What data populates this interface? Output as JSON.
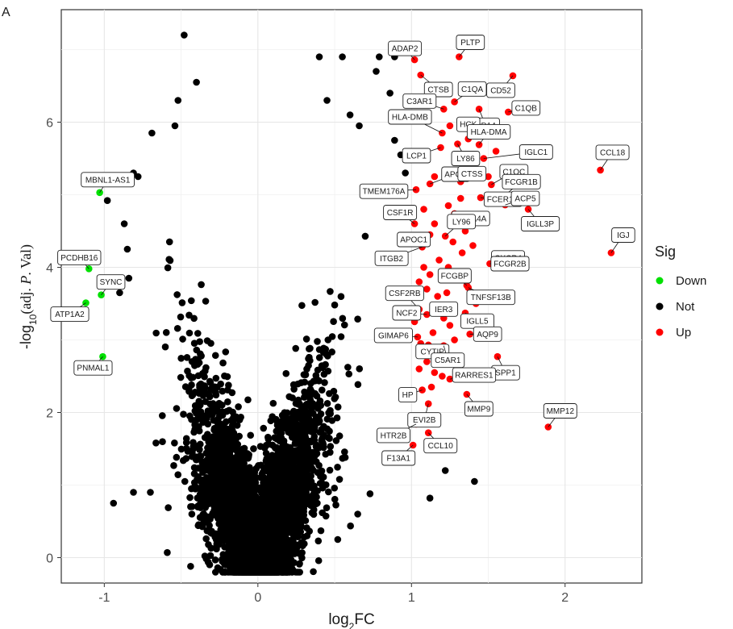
{
  "panel_letter": "A",
  "chart_data": {
    "type": "scatter",
    "title": "",
    "xlabel": "log₂FC",
    "ylabel": "-log₁₀(adj. P. Val)",
    "xlim": [
      -1.28,
      2.5
    ],
    "ylim": [
      -0.35,
      7.55
    ],
    "xticks": [
      -1,
      0,
      1,
      2
    ],
    "yticks": [
      0,
      2,
      4,
      6
    ],
    "xtick_labels": [
      "-1",
      "0",
      "1",
      "2"
    ],
    "ytick_labels": [
      "0",
      "2",
      "4",
      "6"
    ],
    "grid": true,
    "legend": {
      "title": "Sig",
      "position": "right",
      "entries": [
        {
          "name": "Down",
          "color": "#00e000"
        },
        {
          "name": "Not",
          "color": "#000000"
        },
        {
          "name": "Up",
          "color": "#ff0000"
        }
      ]
    },
    "series": [
      {
        "name": "Down",
        "color": "#00e000",
        "points": [
          {
            "x": -1.03,
            "y": 5.03,
            "label": "MBNL1-AS1"
          },
          {
            "x": -1.1,
            "y": 3.98,
            "label": "PCDHB16"
          },
          {
            "x": -1.02,
            "y": 3.62,
            "label": "SYNC"
          },
          {
            "x": -1.12,
            "y": 3.51,
            "label": "ATP1A2"
          },
          {
            "x": -1.01,
            "y": 2.77,
            "label": "PNMAL1"
          }
        ]
      },
      {
        "name": "Up",
        "color": "#ff0000",
        "points": [
          {
            "x": 1.02,
            "y": 6.86,
            "label": "ADAP2"
          },
          {
            "x": 1.31,
            "y": 6.9,
            "label": "PLTP"
          },
          {
            "x": 1.06,
            "y": 6.65,
            "label": "CTSB"
          },
          {
            "x": 1.66,
            "y": 6.64,
            "label": "CD52"
          },
          {
            "x": 1.28,
            "y": 6.28,
            "label": "C1QA"
          },
          {
            "x": 1.21,
            "y": 6.18,
            "label": "C3AR1"
          },
          {
            "x": 1.63,
            "y": 6.14,
            "label": "C1QB"
          },
          {
            "x": 1.44,
            "y": 6.18,
            "label": "CD14"
          },
          {
            "x": 1.37,
            "y": 5.77,
            "label": "HCK"
          },
          {
            "x": 1.2,
            "y": 5.85,
            "label": "HLA-DMB"
          },
          {
            "x": 1.44,
            "y": 5.69,
            "label": "HLA-DMA"
          },
          {
            "x": 1.19,
            "y": 5.65,
            "label": "LCP1"
          },
          {
            "x": 1.3,
            "y": 5.7,
            "label": "LY86"
          },
          {
            "x": 1.47,
            "y": 5.5,
            "label": "IGLC1"
          },
          {
            "x": 2.23,
            "y": 5.34,
            "label": "CCL18"
          },
          {
            "x": 1.12,
            "y": 5.15,
            "label": "APOE"
          },
          {
            "x": 1.32,
            "y": 5.18,
            "label": "CTSS"
          },
          {
            "x": 1.52,
            "y": 5.14,
            "label": "C1QC"
          },
          {
            "x": 1.6,
            "y": 4.98,
            "label": "FCGR1B"
          },
          {
            "x": 1.03,
            "y": 5.07,
            "label": "TMEM176A"
          },
          {
            "x": 1.45,
            "y": 4.96,
            "label": "FCER1G"
          },
          {
            "x": 1.61,
            "y": 4.86,
            "label": "ACP5"
          },
          {
            "x": 1.76,
            "y": 4.8,
            "label": "IGLL3P"
          },
          {
            "x": 1.28,
            "y": 4.74,
            "label": "MS4A4A"
          },
          {
            "x": 1.02,
            "y": 4.6,
            "label": "CSF1R"
          },
          {
            "x": 1.12,
            "y": 4.45,
            "label": "APOC1"
          },
          {
            "x": 1.22,
            "y": 4.43,
            "label": "LY96"
          },
          {
            "x": 1.07,
            "y": 4.28,
            "label": "ITGB2"
          },
          {
            "x": 2.3,
            "y": 4.2,
            "label": "IGJ"
          },
          {
            "x": 1.55,
            "y": 4.13,
            "label": "CXCR4"
          },
          {
            "x": 1.51,
            "y": 4.05,
            "label": "FCGR2B"
          },
          {
            "x": 1.36,
            "y": 3.75,
            "label": "FCGBP"
          },
          {
            "x": 1.37,
            "y": 3.72,
            "label": "TNFSF13B"
          },
          {
            "x": 1.05,
            "y": 3.42,
            "label": "CSF2RB"
          },
          {
            "x": 1.1,
            "y": 3.35,
            "label": "NCF2"
          },
          {
            "x": 1.22,
            "y": 3.48,
            "label": "IER3"
          },
          {
            "x": 1.35,
            "y": 3.37,
            "label": "IGLL5"
          },
          {
            "x": 1.04,
            "y": 3.04,
            "label": "GIMAP6"
          },
          {
            "x": 1.11,
            "y": 2.93,
            "label": "CYTIP"
          },
          {
            "x": 1.21,
            "y": 2.92,
            "label": "C5AR1"
          },
          {
            "x": 1.38,
            "y": 3.08,
            "label": "AQP9"
          },
          {
            "x": 1.56,
            "y": 2.77,
            "label": "SPP1"
          },
          {
            "x": 1.25,
            "y": 2.46,
            "label": "RARRES1"
          },
          {
            "x": 1.07,
            "y": 2.31,
            "label": "HP"
          },
          {
            "x": 1.36,
            "y": 2.25,
            "label": "MMP9"
          },
          {
            "x": 1.11,
            "y": 2.12,
            "label": "EVI2B"
          },
          {
            "x": 1.89,
            "y": 1.8,
            "label": "MMP12"
          },
          {
            "x": 1.03,
            "y": 1.84,
            "label": "HTR2B"
          },
          {
            "x": 1.11,
            "y": 1.72,
            "label": "CCL10"
          },
          {
            "x": 1.01,
            "y": 1.55,
            "label": "F13A1"
          },
          {
            "x": 1.05,
            "y": 2.6,
            "label": ""
          },
          {
            "x": 1.1,
            "y": 2.7,
            "label": ""
          },
          {
            "x": 1.15,
            "y": 2.55,
            "label": ""
          },
          {
            "x": 1.2,
            "y": 2.8,
            "label": ""
          },
          {
            "x": 1.25,
            "y": 3.2,
            "label": ""
          },
          {
            "x": 1.3,
            "y": 3.9,
            "label": ""
          },
          {
            "x": 1.12,
            "y": 3.9,
            "label": ""
          },
          {
            "x": 1.18,
            "y": 4.1,
            "label": ""
          },
          {
            "x": 1.24,
            "y": 4.0,
            "label": ""
          },
          {
            "x": 1.08,
            "y": 4.0,
            "label": ""
          },
          {
            "x": 1.15,
            "y": 4.6,
            "label": ""
          },
          {
            "x": 1.24,
            "y": 4.85,
            "label": ""
          },
          {
            "x": 1.35,
            "y": 4.5,
            "label": ""
          },
          {
            "x": 1.1,
            "y": 3.7,
            "label": ""
          },
          {
            "x": 1.17,
            "y": 3.6,
            "label": ""
          },
          {
            "x": 1.23,
            "y": 3.65,
            "label": ""
          },
          {
            "x": 1.28,
            "y": 3.0,
            "label": ""
          },
          {
            "x": 1.05,
            "y": 3.8,
            "label": ""
          },
          {
            "x": 1.14,
            "y": 3.1,
            "label": ""
          },
          {
            "x": 1.19,
            "y": 2.9,
            "label": ""
          },
          {
            "x": 1.4,
            "y": 4.3,
            "label": ""
          },
          {
            "x": 1.33,
            "y": 4.2,
            "label": ""
          },
          {
            "x": 1.27,
            "y": 4.35,
            "label": ""
          },
          {
            "x": 1.5,
            "y": 5.25,
            "label": ""
          },
          {
            "x": 1.55,
            "y": 5.6,
            "label": ""
          },
          {
            "x": 1.38,
            "y": 5.9,
            "label": ""
          },
          {
            "x": 1.25,
            "y": 5.95,
            "label": ""
          },
          {
            "x": 1.15,
            "y": 5.25,
            "label": ""
          },
          {
            "x": 1.08,
            "y": 4.8,
            "label": ""
          },
          {
            "x": 1.32,
            "y": 4.95,
            "label": ""
          },
          {
            "x": 1.21,
            "y": 3.3,
            "label": ""
          },
          {
            "x": 1.13,
            "y": 2.35,
            "label": ""
          },
          {
            "x": 1.09,
            "y": 1.95,
            "label": ""
          },
          {
            "x": 1.16,
            "y": 3.45,
            "label": ""
          },
          {
            "x": 1.42,
            "y": 3.5,
            "label": ""
          },
          {
            "x": 1.29,
            "y": 2.65,
            "label": ""
          },
          {
            "x": 1.06,
            "y": 2.95,
            "label": ""
          },
          {
            "x": 1.2,
            "y": 2.5,
            "label": ""
          },
          {
            "x": 1.34,
            "y": 3.85,
            "label": ""
          },
          {
            "x": 1.02,
            "y": 3.25,
            "label": ""
          }
        ]
      },
      {
        "name": "Not",
        "color": "#000000",
        "points": [
          {
            "x": -0.48,
            "y": 7.2
          },
          {
            "x": -0.4,
            "y": 6.55
          },
          {
            "x": -0.52,
            "y": 6.3
          },
          {
            "x": -0.54,
            "y": 5.95
          },
          {
            "x": -0.69,
            "y": 5.85
          },
          {
            "x": -0.78,
            "y": 5.25
          },
          {
            "x": -0.81,
            "y": 5.3
          },
          {
            "x": -0.98,
            "y": 4.92
          },
          {
            "x": -0.87,
            "y": 4.6
          },
          {
            "x": -0.85,
            "y": 4.25
          },
          {
            "x": -0.84,
            "y": 3.85
          },
          {
            "x": -0.9,
            "y": 3.65
          },
          {
            "x": -1.0,
            "y": 2.65
          },
          {
            "x": -0.94,
            "y": 0.75
          },
          {
            "x": -0.81,
            "y": 0.9
          },
          {
            "x": -0.7,
            "y": 0.9
          },
          {
            "x": -0.59,
            "y": 0.07
          },
          {
            "x": -0.43,
            "y": 0.6
          },
          {
            "x": 0.4,
            "y": 6.9
          },
          {
            "x": 0.45,
            "y": 6.3
          },
          {
            "x": 0.55,
            "y": 6.9
          },
          {
            "x": 0.6,
            "y": 6.1
          },
          {
            "x": 0.66,
            "y": 5.95
          },
          {
            "x": 0.77,
            "y": 6.7
          },
          {
            "x": 0.79,
            "y": 6.9
          },
          {
            "x": 0.89,
            "y": 6.9
          },
          {
            "x": 0.86,
            "y": 6.4
          },
          {
            "x": 0.89,
            "y": 5.75
          },
          {
            "x": 0.93,
            "y": 5.55
          },
          {
            "x": 0.96,
            "y": 5.3
          },
          {
            "x": 0.73,
            "y": 0.88
          },
          {
            "x": 0.65,
            "y": 0.6
          },
          {
            "x": 0.52,
            "y": 0.25
          },
          {
            "x": 1.22,
            "y": 1.2
          },
          {
            "x": 1.41,
            "y": 1.05
          },
          {
            "x": 1.12,
            "y": 0.82
          }
        ]
      }
    ]
  }
}
